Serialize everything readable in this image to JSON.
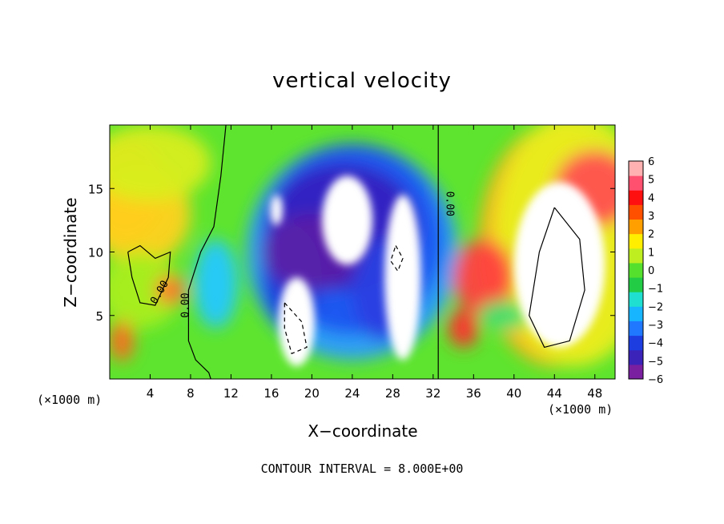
{
  "chart_data": {
    "type": "heatmap",
    "title": "vertical velocity",
    "xlabel": "X−coordinate",
    "ylabel": "Z−coordinate",
    "x_unit_left": "(×1000 m)",
    "x_unit_right": "(×1000 m)",
    "xlim": [
      0,
      50
    ],
    "ylim": [
      0,
      20
    ],
    "x_ticks": [
      4,
      8,
      12,
      16,
      20,
      24,
      28,
      32,
      36,
      40,
      44,
      48
    ],
    "x_tick_labels": [
      "4",
      "8",
      "12",
      "16",
      "20",
      "24",
      "28",
      "32",
      "36",
      "40",
      "44",
      "48"
    ],
    "y_ticks": [
      5,
      10,
      15
    ],
    "y_tick_labels": [
      "5",
      "10",
      "15"
    ],
    "colorbar": {
      "min": -6,
      "max": 6,
      "tick_labels": [
        "6",
        "5",
        "4",
        "3",
        "2",
        "1",
        "0",
        "−1",
        "−2",
        "−3",
        "−4",
        "−5",
        "−6"
      ],
      "tick_values": [
        6,
        5,
        4,
        3,
        2,
        1,
        0,
        -1,
        -2,
        -3,
        -4,
        -5,
        -6
      ],
      "colors": [
        "#7a1fa0",
        "#3b22b8",
        "#1e3de0",
        "#1f78ff",
        "#17b4ff",
        "#1fe0d0",
        "#22cc44",
        "#55e02e",
        "#bfee20",
        "#ffee00",
        "#ffa000",
        "#ff5000",
        "#ff1010",
        "#ff5070",
        "#ffb0b0"
      ]
    },
    "contour_labels": [
      "0.00",
      "0.00",
      "0.00"
    ],
    "contour_interval_note": "CONTOUR INTERVAL =  8.000E+00"
  }
}
